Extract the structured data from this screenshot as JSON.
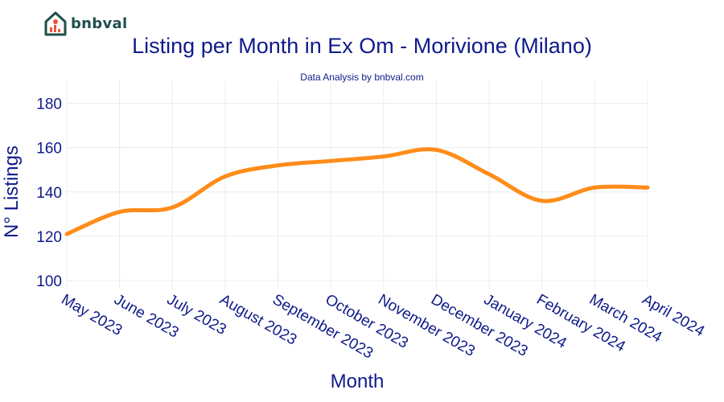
{
  "header": {
    "brand": "bnbval",
    "title": "Listing per Month in Ex Om - Morivione (Milano)",
    "subtitle": "Data Analysis by bnbval.com"
  },
  "colors": {
    "line": "#ff8c1a",
    "text": "#0f1b8a",
    "grid": "#ececec",
    "brand": "#1f4f4b",
    "logo_accent": "#e8553a"
  },
  "chart_data": {
    "type": "line",
    "title": "Listing per Month in Ex Om - Morivione (Milano)",
    "subtitle": "Data Analysis by bnbval.com",
    "xlabel": "Month",
    "ylabel": "N° Listings",
    "categories": [
      "May 2023",
      "June 2023",
      "July 2023",
      "August 2023",
      "September 2023",
      "October 2023",
      "November 2023",
      "December 2023",
      "January 2024",
      "February 2024",
      "March 2024",
      "April 2024"
    ],
    "series": [
      {
        "values": [
          121,
          131,
          133,
          147,
          152,
          154,
          156,
          159,
          148,
          136,
          142,
          142
        ]
      }
    ],
    "ylim": [
      96,
      190
    ],
    "yticks": [
      100,
      120,
      140,
      160,
      180
    ],
    "grid": true,
    "line_shape": "smooth"
  }
}
